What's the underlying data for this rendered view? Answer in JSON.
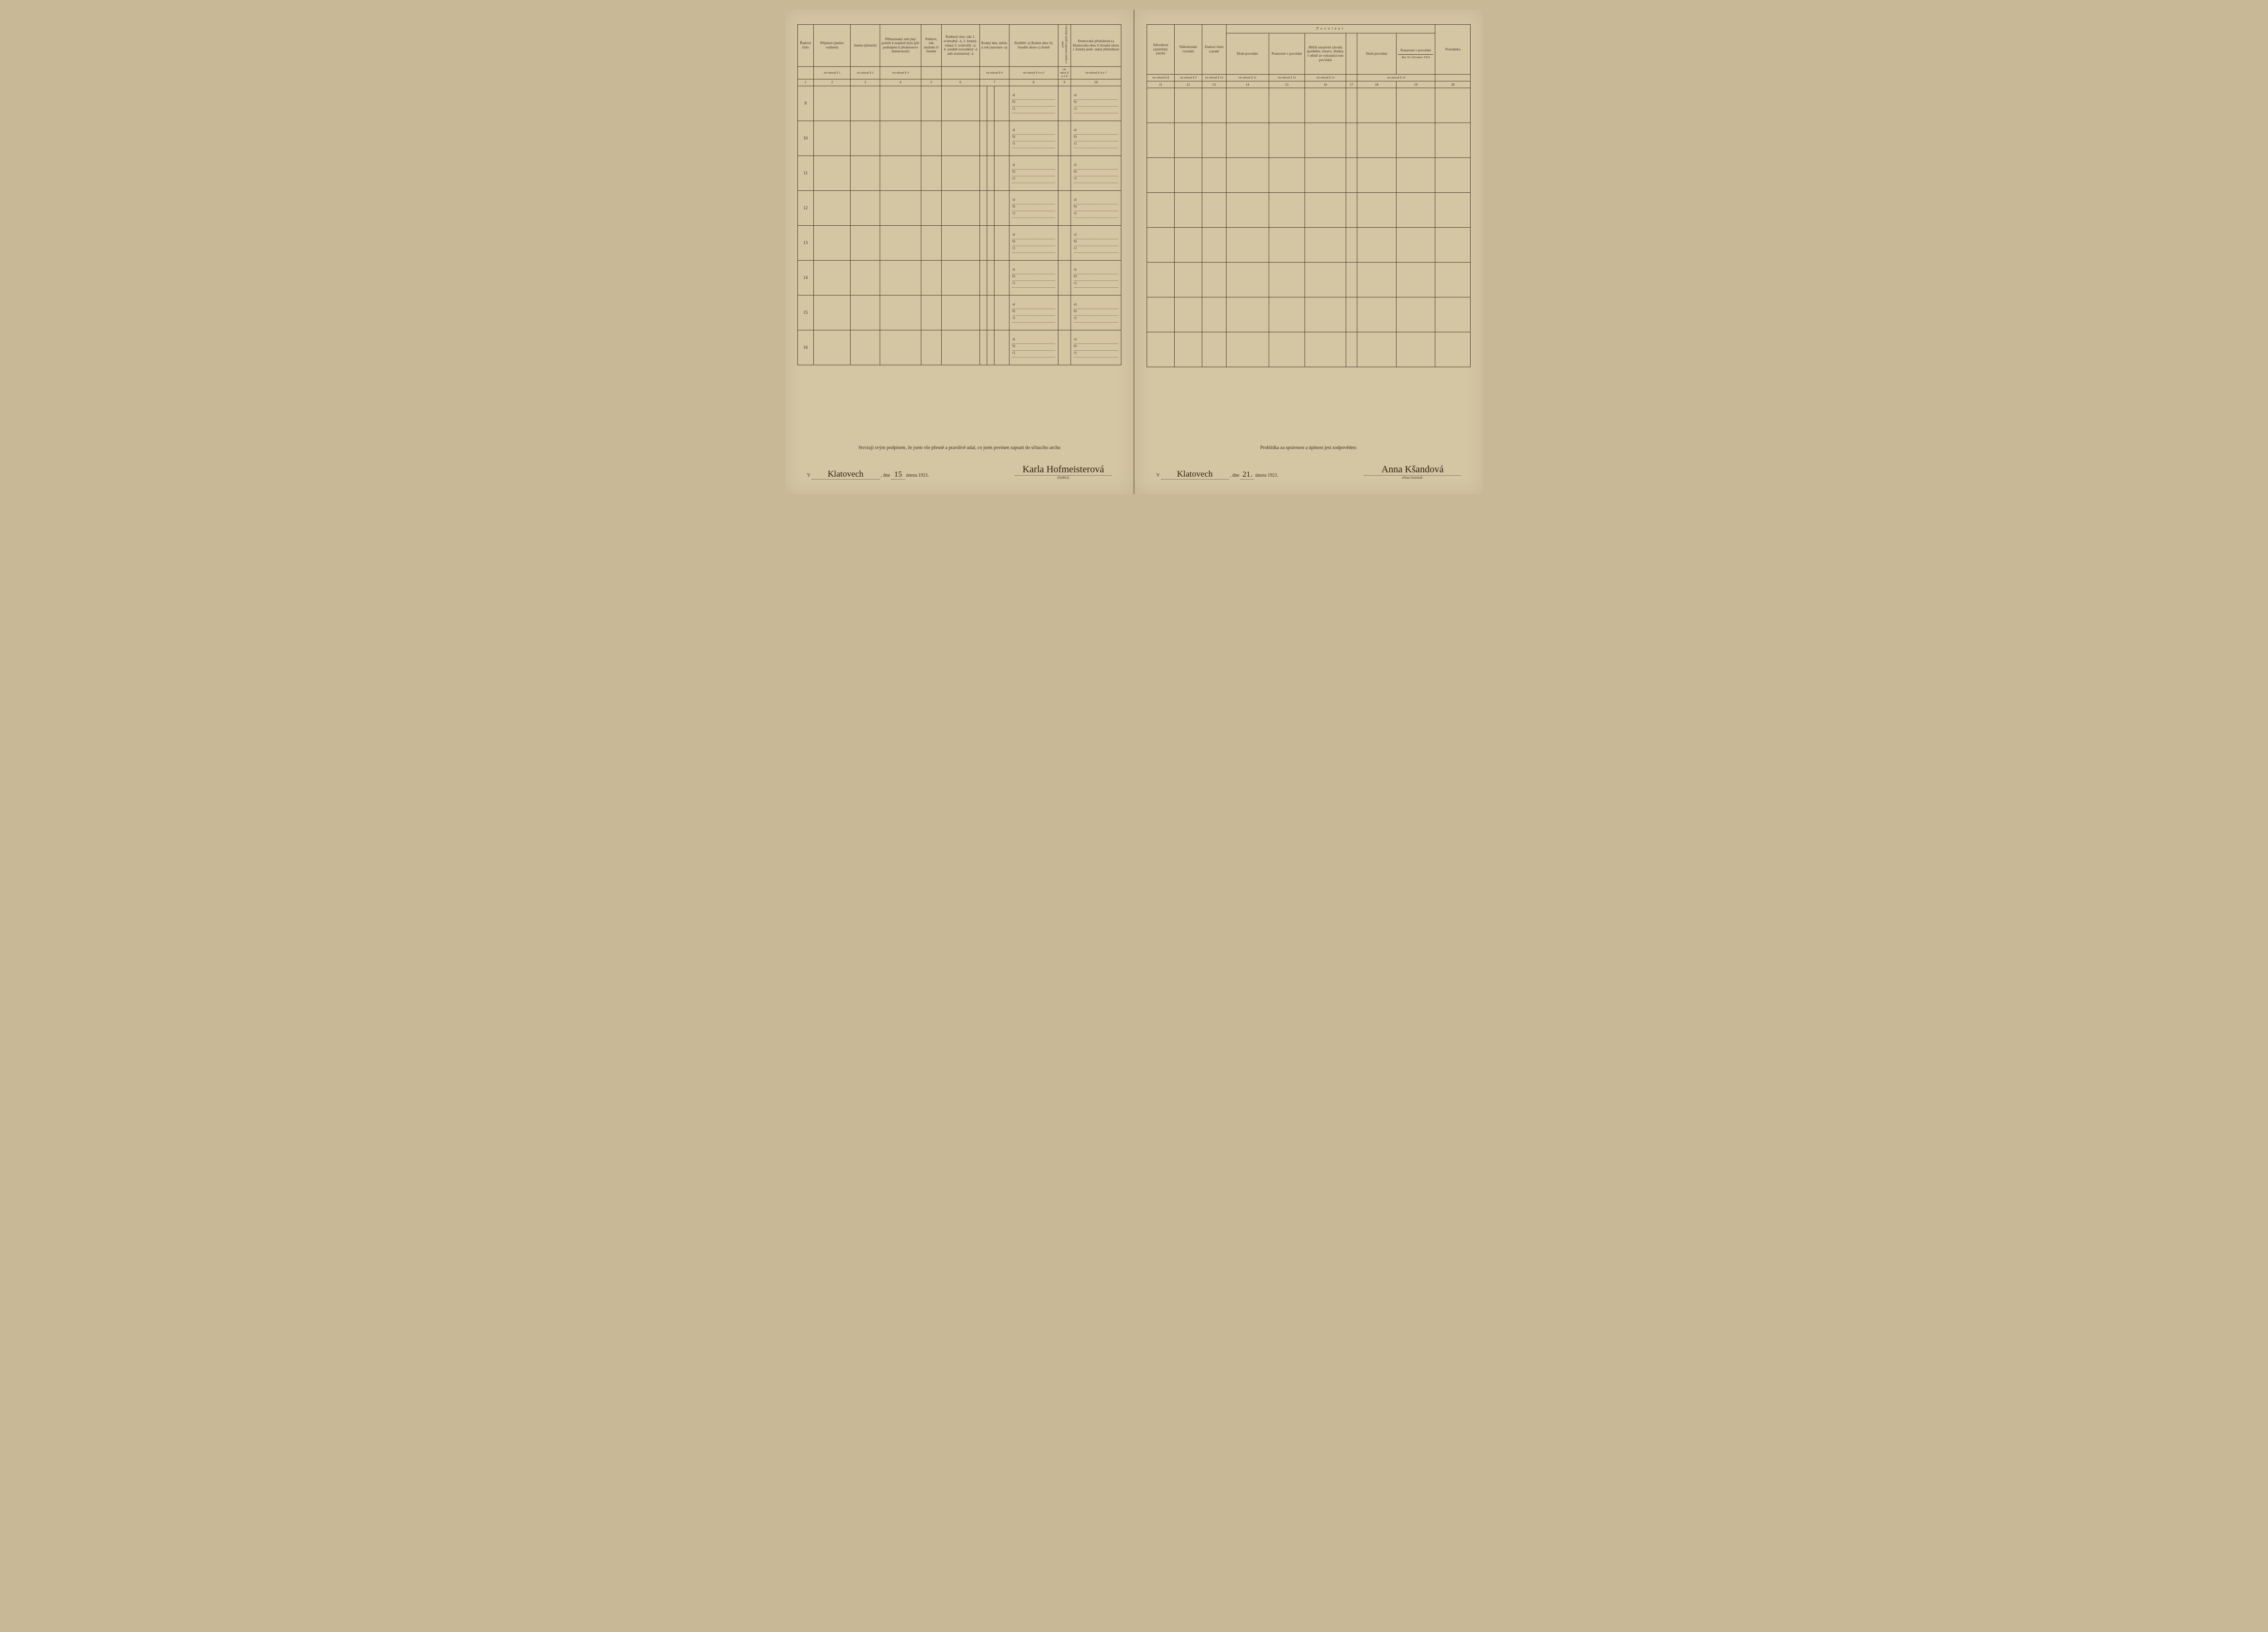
{
  "leftPage": {
    "headers": {
      "col1": "Řadové číslo",
      "col2": "Příjmení (jméno rodinné)",
      "col3": "Jméno (křestní)",
      "col4": "Příbuzenský neb jiný poměr k majiteli bytu (při podnájmu k přednostovi domácnosti)",
      "col5": "Pohlaví, zda mužské či ženské",
      "col6": "Rodinný stav, zda 1. svobodný -á, 2. ženatý, vdaná 3. ovdovělý -á, 4. soudně rozvedený -á neb rozloučený -á",
      "col7": "Rodný den, měsíc a rok (narozen -a)",
      "col7a": "dne",
      "col7b": "měsíce",
      "col7c": "roku",
      "col8": "Rodiště: a) Rodná obec b) Soudní okres c) Země",
      "col9": "Od kdy bydlí zapsaná osoba v obci?",
      "col10": "Domovská příslušnost (a Domovská obec b Soudní okres c Země) aneb: státní příslušnost"
    },
    "hints": {
      "h1": "",
      "h2": "viz návod § 1",
      "h3": "viz návod § 2",
      "h4": "viz návod § 3",
      "h5": "",
      "h6": "",
      "h7": "viz návod § 4",
      "h8": "viz návod § 4 a 5",
      "h9": "viz návo § a n §",
      "h10": "viz návod § 4 a 7"
    },
    "colNums": [
      "1",
      "2",
      "3",
      "4",
      "5",
      "6",
      "7",
      "8",
      "9",
      "10"
    ],
    "rowNums": [
      "9",
      "10",
      "11",
      "12",
      "13",
      "14",
      "15",
      "16"
    ],
    "subLabels": {
      "a": "a)",
      "b": "b)",
      "c": "c)"
    },
    "footer": {
      "affirm": "Stvrzuji svým podpisem, že jsem vše přesně a pravdivě udal, co jsem povinen zapsati do sčítacího archu",
      "prefix": "V",
      "placeSig": "Klatovech",
      "dne": ", dne",
      "dateSig": "15",
      "month": "února 1921.",
      "sigLabel": "(bydlící)",
      "signature": "Karla Hofmeisterová"
    }
  },
  "rightPage": {
    "sectionHead": "Povolání",
    "headers": {
      "col11": "Národnost (mateřský jazyk)",
      "col12": "Náboženské vyznání",
      "col13": "Znalost čtení a psaní",
      "col14": "Druh povolání",
      "col15": "Postavení v povolání",
      "col16": "Bližší označení závodu (podniku, ústavu, úřadu), v němž se vykonává toto povolání",
      "col17": "",
      "col18": "Druh povolání",
      "col19": "Postavení v povolání",
      "col20": "Poznámka",
      "dateNote": "dne 16. července 1914"
    },
    "hints": {
      "h11": "viz návod § 8",
      "h12": "viz návod § 9",
      "h13": "viz návod § 10",
      "h14": "viz návod § 11",
      "h15": "viz návod § 12",
      "h16": "viz návod § 13",
      "h17": "",
      "h18_19": "viz návod § 14",
      "h20": ""
    },
    "colNums": [
      "11",
      "12",
      "13",
      "14",
      "15",
      "16",
      "17",
      "18",
      "19",
      "20"
    ],
    "footer": {
      "affirm": "Prohlídka za správnost a úplnost jest zodpověden:",
      "prefix": "V",
      "placeSig": "Klatovech",
      "dne": ", dne",
      "dateSig": "21.",
      "month": "února 1921.",
      "sigLabel": "sčítací komisař.",
      "signature": "Anna Kšandová"
    }
  },
  "style": {
    "paperColor": "#d4c5a3",
    "inkColor": "#3a3025",
    "borderColor": "#4a3f30"
  }
}
